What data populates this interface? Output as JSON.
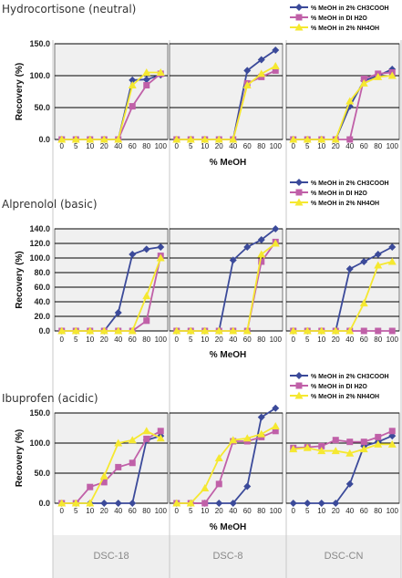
{
  "colors": {
    "acid": "#3b4a9a",
    "water": "#c060a8",
    "base": "#f5e830",
    "grid": "#000000",
    "panel_bg": "#f0f0f0",
    "column_bg": "#eeeeee"
  },
  "series_names": [
    "% MeOH in 2% CH3COOH",
    "% MeOH in DI H2O",
    "% MeOH in 2% NH4OH"
  ],
  "x_labels": [
    "0",
    "5",
    "10",
    "20",
    "40",
    "60",
    "80",
    "100"
  ],
  "columns": [
    "DSC-18",
    "DSC-8",
    "DSC-CN"
  ],
  "chart_data": [
    {
      "type": "line",
      "title": "Hydrocortisone (neutral)",
      "ylabel": "Recovery (%)",
      "xlabel": "% MeOH",
      "ylim": [
        0,
        150
      ],
      "yticks": [
        "0.0",
        "50.0",
        "100.0",
        "150.0"
      ],
      "yvalues": [
        0,
        50,
        100,
        150
      ],
      "legend": "top-right",
      "panels": [
        {
          "column": "DSC-18",
          "series": [
            {
              "name": "% MeOH in 2% CH3COOH",
              "values": [
                0,
                0,
                0,
                0,
                0,
                93,
                94,
                101
              ]
            },
            {
              "name": "% MeOH in DI H2O",
              "values": [
                0,
                0,
                0,
                0,
                0,
                52,
                85,
                103
              ]
            },
            {
              "name": "% MeOH in 2% NH4OH",
              "values": [
                0,
                0,
                0,
                0,
                0,
                85,
                105,
                105
              ]
            }
          ]
        },
        {
          "column": "DSC-8",
          "series": [
            {
              "name": "% MeOH in 2% CH3COOH",
              "values": [
                0,
                0,
                0,
                0,
                0,
                108,
                125,
                140
              ]
            },
            {
              "name": "% MeOH in DI H2O",
              "values": [
                0,
                0,
                0,
                0,
                0,
                88,
                98,
                108
              ]
            },
            {
              "name": "% MeOH in 2% NH4OH",
              "values": [
                0,
                0,
                0,
                0,
                0,
                85,
                103,
                115
              ]
            }
          ]
        },
        {
          "column": "DSC-CN",
          "series": [
            {
              "name": "% MeOH in 2% CH3COOH",
              "values": [
                0,
                0,
                0,
                0,
                52,
                92,
                100,
                110
              ]
            },
            {
              "name": "% MeOH in DI H2O",
              "values": [
                0,
                0,
                0,
                0,
                0,
                95,
                103,
                105
              ]
            },
            {
              "name": "% MeOH in 2% NH4OH",
              "values": [
                0,
                0,
                0,
                0,
                60,
                88,
                98,
                100
              ]
            }
          ]
        }
      ]
    },
    {
      "type": "line",
      "title": "Alprenolol (basic)",
      "ylabel": "Recovery (%)",
      "xlabel": "% MeOH",
      "ylim": [
        0,
        140
      ],
      "yticks": [
        "0.0",
        "20.0",
        "40.0",
        "60.0",
        "80.0",
        "100.0",
        "120.0",
        "140.0"
      ],
      "yvalues": [
        0,
        20,
        40,
        60,
        80,
        100,
        120,
        140
      ],
      "legend": "top-right",
      "panels": [
        {
          "column": "DSC-18",
          "series": [
            {
              "name": "% MeOH in 2% CH3COOH",
              "values": [
                0,
                0,
                0,
                0,
                25,
                105,
                112,
                115
              ]
            },
            {
              "name": "% MeOH in DI H2O",
              "values": [
                0,
                0,
                0,
                0,
                0,
                0,
                14,
                103
              ]
            },
            {
              "name": "% MeOH in 2% NH4OH",
              "values": [
                0,
                0,
                0,
                0,
                0,
                0,
                48,
                100
              ]
            }
          ]
        },
        {
          "column": "DSC-8",
          "series": [
            {
              "name": "% MeOH in 2% CH3COOH",
              "values": [
                0,
                0,
                0,
                0,
                97,
                115,
                125,
                140
              ]
            },
            {
              "name": "% MeOH in DI H2O",
              "values": [
                0,
                0,
                0,
                0,
                0,
                0,
                95,
                122
              ]
            },
            {
              "name": "% MeOH in 2% NH4OH",
              "values": [
                0,
                0,
                0,
                0,
                0,
                0,
                105,
                120
              ]
            }
          ]
        },
        {
          "column": "DSC-CN",
          "series": [
            {
              "name": "% MeOH in 2% CH3COOH",
              "values": [
                0,
                0,
                0,
                0,
                85,
                95,
                105,
                115
              ]
            },
            {
              "name": "% MeOH in DI H2O",
              "values": [
                0,
                0,
                0,
                0,
                0,
                0,
                0,
                0
              ]
            },
            {
              "name": "% MeOH in 2% NH4OH",
              "values": [
                0,
                0,
                0,
                0,
                0,
                38,
                90,
                95
              ]
            }
          ]
        }
      ]
    },
    {
      "type": "line",
      "title": "Ibuprofen (acidic)",
      "ylabel": "Recovery (%)",
      "xlabel": "% MeOH",
      "ylim": [
        0,
        150
      ],
      "yticks": [
        "0.0",
        "50.0",
        "100.0",
        "150.0"
      ],
      "yvalues": [
        0,
        50,
        100,
        150
      ],
      "legend": "top-right",
      "panels": [
        {
          "column": "DSC-18",
          "series": [
            {
              "name": "% MeOH in 2% CH3COOH",
              "values": [
                0,
                0,
                0,
                0,
                0,
                0,
                105,
                112
              ]
            },
            {
              "name": "% MeOH in DI H2O",
              "values": [
                0,
                0,
                27,
                35,
                60,
                67,
                107,
                120
              ]
            },
            {
              "name": "% MeOH in 2% NH4OH",
              "values": [
                0,
                0,
                0,
                45,
                100,
                105,
                120,
                108
              ]
            }
          ]
        },
        {
          "column": "DSC-8",
          "series": [
            {
              "name": "% MeOH in 2% CH3COOH",
              "values": [
                0,
                0,
                0,
                0,
                0,
                28,
                143,
                158
              ]
            },
            {
              "name": "% MeOH in DI H2O",
              "values": [
                0,
                0,
                0,
                32,
                103,
                103,
                110,
                120
              ]
            },
            {
              "name": "% MeOH in 2% NH4OH",
              "values": [
                0,
                0,
                25,
                75,
                105,
                108,
                115,
                128
              ]
            }
          ]
        },
        {
          "column": "DSC-CN",
          "series": [
            {
              "name": "% MeOH in 2% CH3COOH",
              "values": [
                0,
                0,
                0,
                0,
                32,
                95,
                102,
                112
              ]
            },
            {
              "name": "% MeOH in DI H2O",
              "values": [
                92,
                93,
                95,
                105,
                102,
                102,
                110,
                120
              ]
            },
            {
              "name": "% MeOH in 2% NH4OH",
              "values": [
                90,
                92,
                87,
                87,
                83,
                90,
                98,
                98
              ]
            }
          ]
        }
      ]
    }
  ]
}
